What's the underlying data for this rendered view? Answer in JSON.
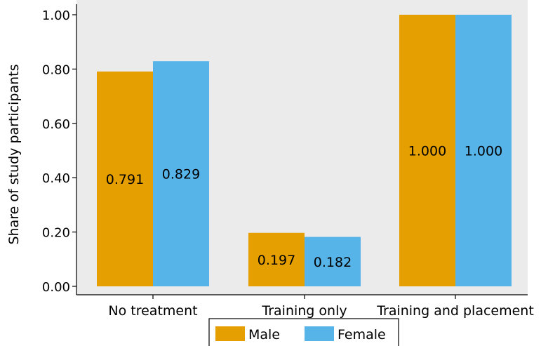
{
  "chart_data": {
    "type": "bar",
    "title": "",
    "xlabel": "",
    "ylabel": "Share of study participants",
    "categories": [
      "No treatment",
      "Training only",
      "Training and placement"
    ],
    "series": [
      {
        "name": "Male",
        "values": [
          0.791,
          0.197,
          1.0
        ],
        "labels": [
          "0.791",
          "0.197",
          "1.000"
        ],
        "color": "#E69F00"
      },
      {
        "name": "Female",
        "values": [
          0.829,
          0.182,
          1.0
        ],
        "labels": [
          "0.829",
          "0.182",
          "1.000"
        ],
        "color": "#56B4E9"
      }
    ],
    "ylim": [
      0,
      1
    ],
    "yticks": [
      0,
      0.2,
      0.4,
      0.6,
      0.8,
      1.0
    ],
    "ytick_labels": [
      "0.00",
      "0.20",
      "0.40",
      "0.60",
      "0.80",
      "1.00"
    ],
    "grid": false,
    "plot_background": "#EBEBEB",
    "legend_position": "bottom"
  }
}
